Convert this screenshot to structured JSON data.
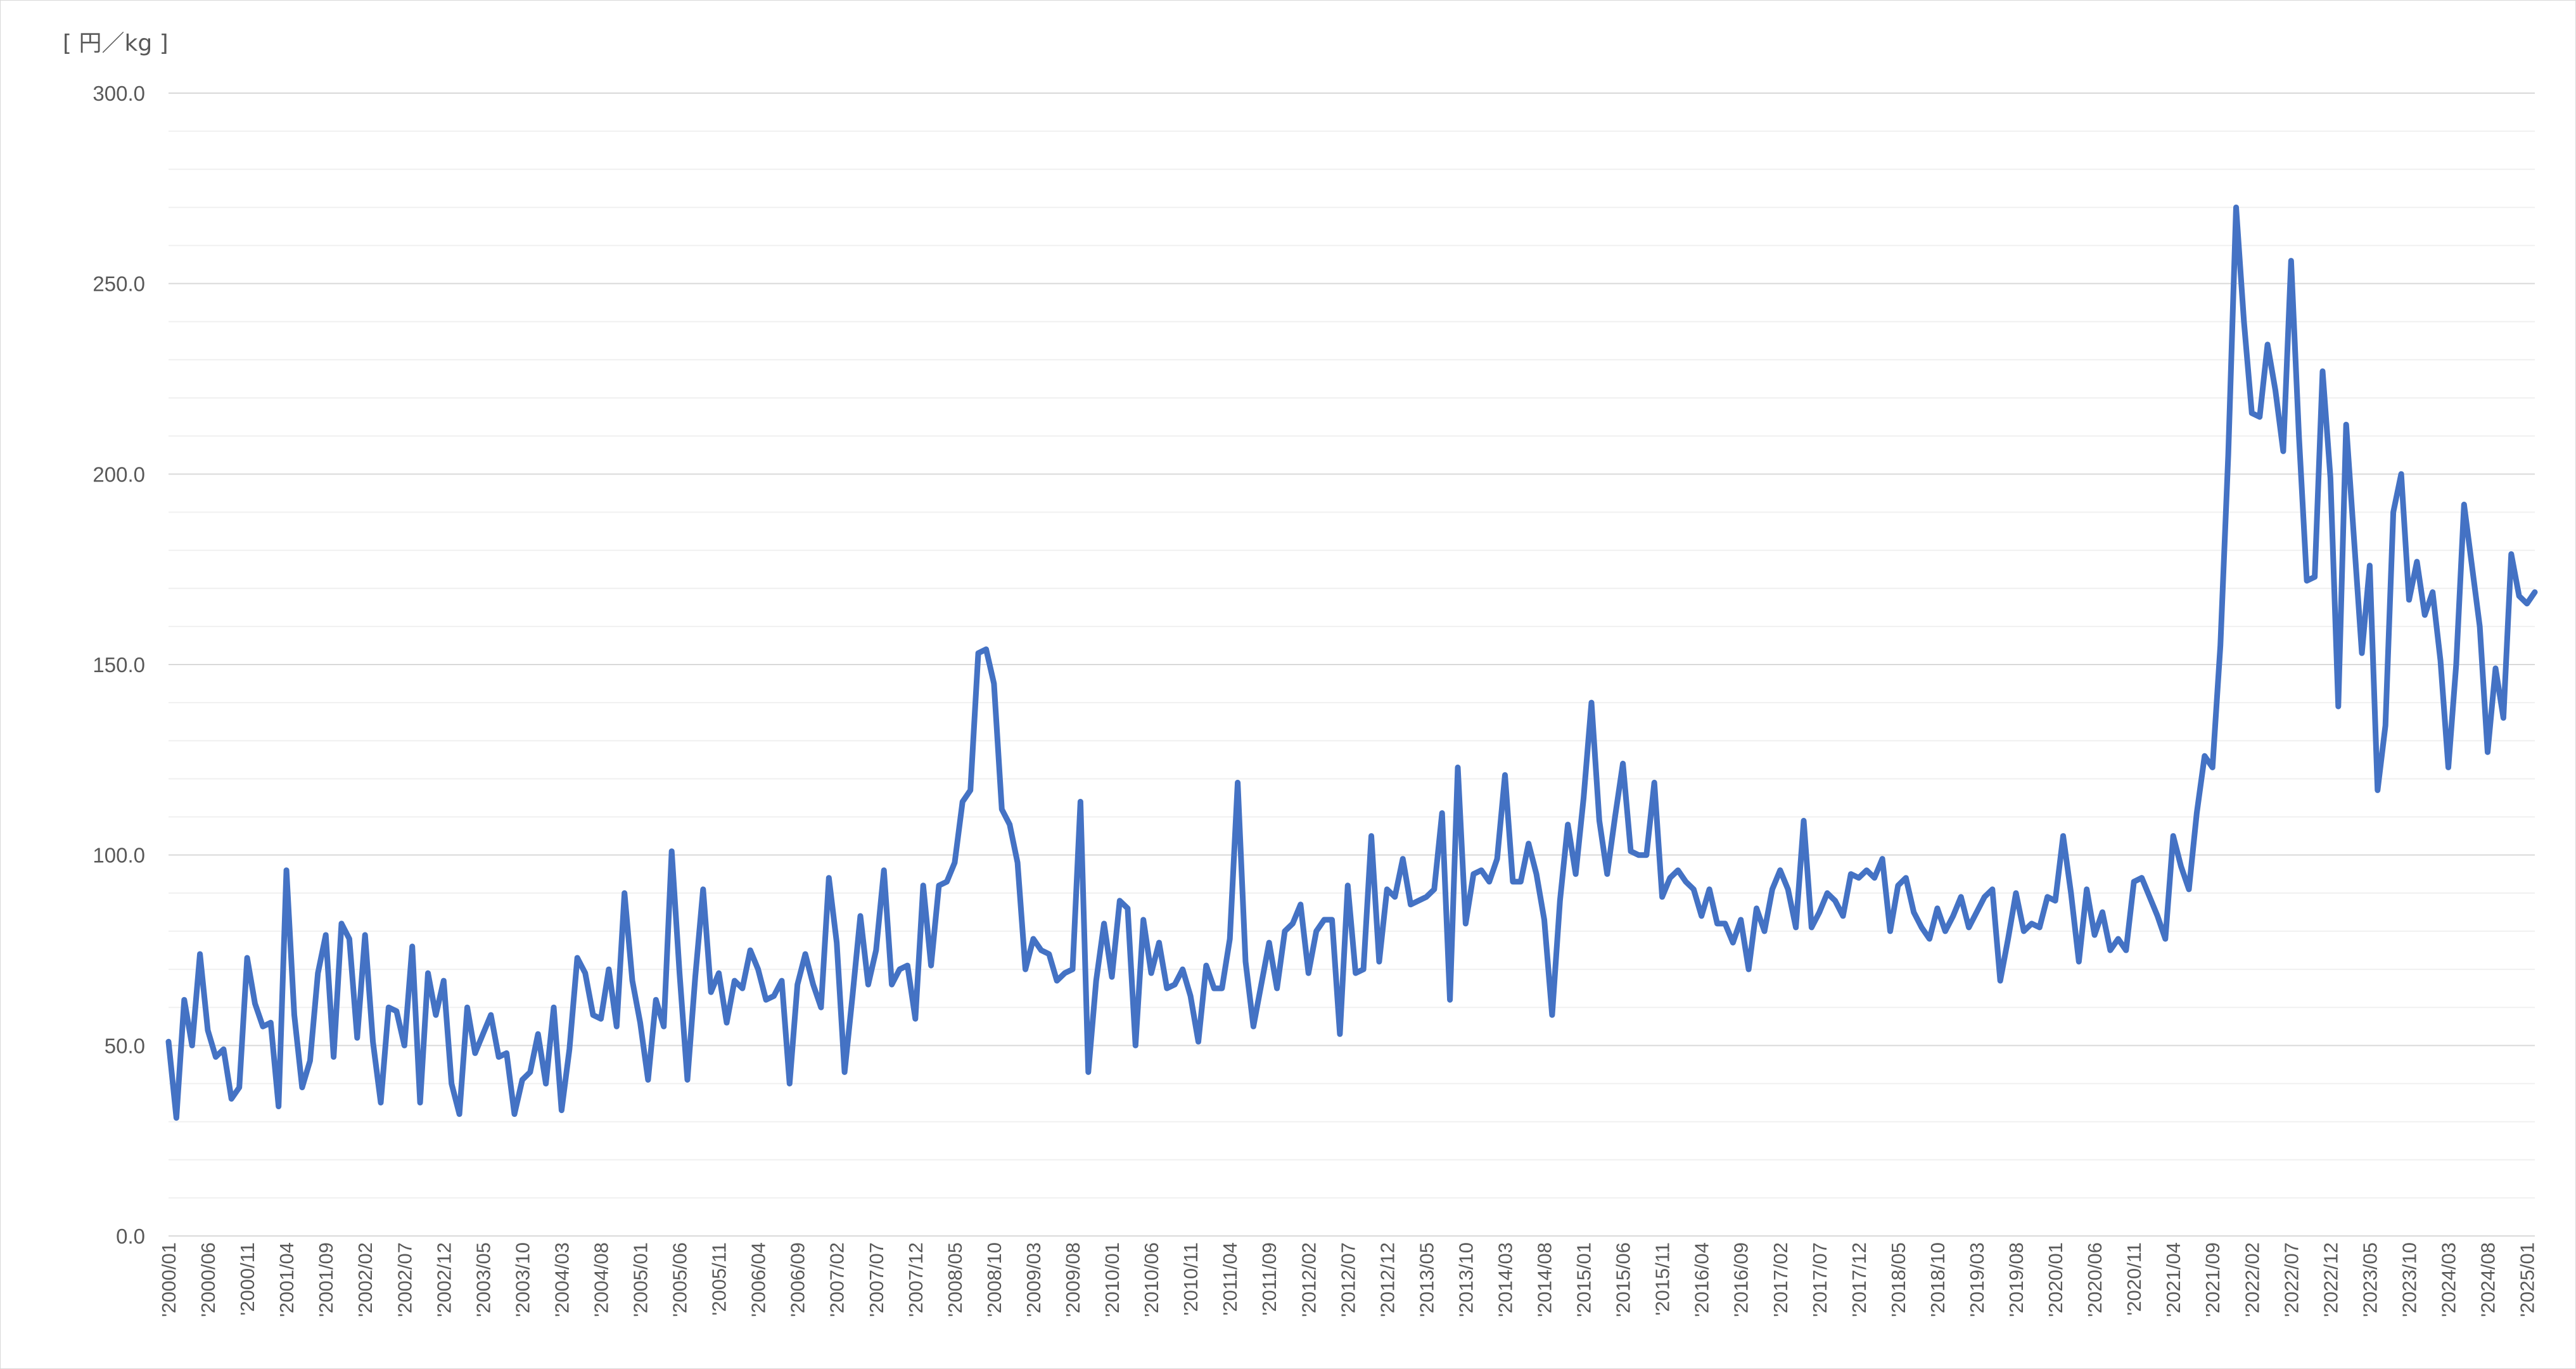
{
  "chart_data": {
    "type": "line",
    "unit_label": "[ 円／kg ]",
    "ylim": [
      0,
      300
    ],
    "y_major_ticks": [
      "0.0",
      "50.0",
      "100.0",
      "150.0",
      "200.0",
      "250.0",
      "300.0"
    ],
    "y_tick_values": [
      0,
      50,
      100,
      150,
      200,
      250,
      300
    ],
    "y_minor_step": 10,
    "grid": true,
    "legend": "none",
    "line_color": "#4472C4",
    "start": "2000-01",
    "x_tick_labels": [
      "'2000/01",
      "'2000/06",
      "'2000/11",
      "'2001/04",
      "'2001/09",
      "'2002/02",
      "'2002/07",
      "'2002/12",
      "'2003/05",
      "'2003/10",
      "'2004/03",
      "'2004/08",
      "'2005/01",
      "'2005/06",
      "'2005/11",
      "'2006/04",
      "'2006/09",
      "'2007/02",
      "'2007/07",
      "'2007/12",
      "'2008/05",
      "'2008/10",
      "'2009/03",
      "'2009/08",
      "'2010/01",
      "'2010/06",
      "'2010/11",
      "'2011/04",
      "'2011/09",
      "'2012/02",
      "'2012/07",
      "'2012/12",
      "'2013/05",
      "'2013/10",
      "'2014/03",
      "'2014/08",
      "'2015/01",
      "'2015/06",
      "'2015/11",
      "'2016/04",
      "'2016/09",
      "'2017/02",
      "'2017/07",
      "'2017/12",
      "'2018/05",
      "'2018/10",
      "'2019/03",
      "'2019/08",
      "'2020/01",
      "'2020/06",
      "'2020/11",
      "'2021/04",
      "'2021/09",
      "'2022/02",
      "'2022/07",
      "'2022/12",
      "'2023/05",
      "'2023/10",
      "'2024/03",
      "'2024/08",
      "'2025/01"
    ],
    "series": [
      {
        "values": [
          51,
          31,
          62,
          50,
          74,
          54,
          47,
          49,
          36,
          39,
          73,
          61,
          55,
          56,
          34,
          96,
          58,
          39,
          46,
          69,
          79,
          47,
          82,
          78,
          52,
          79,
          51,
          35,
          60,
          59,
          50,
          76,
          35,
          69,
          58,
          67,
          40,
          32,
          60,
          48,
          53,
          58,
          47,
          48,
          32,
          41,
          43,
          53,
          40,
          60,
          33,
          49,
          73,
          69,
          58,
          57,
          70,
          55,
          90,
          67,
          56,
          41,
          62,
          55,
          101,
          69,
          41,
          68,
          91,
          64,
          69,
          56,
          67,
          65,
          75,
          70,
          62,
          63,
          67,
          40,
          66,
          74,
          66,
          60,
          94,
          77,
          43,
          63,
          84,
          66,
          75,
          96,
          66,
          70,
          71,
          57,
          92,
          71,
          92,
          93,
          98,
          114,
          117,
          153,
          154,
          145,
          112,
          108,
          98,
          70,
          78,
          75,
          74,
          67,
          69,
          70,
          114,
          43,
          67,
          82,
          68,
          88,
          86,
          50,
          83,
          69,
          77,
          65,
          66,
          70,
          63,
          51,
          71,
          65,
          65,
          78,
          119,
          72,
          55,
          66,
          77,
          65,
          80,
          82,
          87,
          69,
          80,
          83,
          83,
          53,
          92,
          69,
          70,
          105,
          72,
          91,
          89,
          99,
          87,
          88,
          89,
          91,
          111,
          62,
          123,
          82,
          95,
          96,
          93,
          99,
          121,
          93,
          93,
          103,
          95,
          83,
          58,
          88,
          108,
          95,
          115,
          140,
          109,
          95,
          110,
          124,
          101,
          100,
          100,
          119,
          89,
          94,
          96,
          93,
          91,
          84,
          91,
          82,
          82,
          77,
          83,
          70,
          86,
          80,
          91,
          96,
          91,
          81,
          109,
          81,
          85,
          90,
          88,
          84,
          95,
          94,
          96,
          94,
          99,
          80,
          92,
          94,
          85,
          81,
          78,
          86,
          80,
          84,
          89,
          81,
          85,
          89,
          91,
          67,
          78,
          90,
          80,
          82,
          81,
          89,
          88,
          105,
          90,
          72,
          91,
          79,
          85,
          75,
          78,
          75,
          93,
          94,
          89,
          84,
          78,
          105,
          97,
          91,
          111,
          126,
          123,
          155,
          205,
          270,
          240,
          216,
          215,
          234,
          222,
          206,
          256,
          210,
          172,
          173,
          227,
          199,
          139,
          213,
          183,
          153,
          176,
          117,
          134,
          190,
          200,
          167,
          177,
          163,
          169,
          151,
          123,
          150,
          192,
          176,
          160,
          127,
          149,
          136,
          179,
          168,
          166,
          169
        ]
      }
    ]
  }
}
